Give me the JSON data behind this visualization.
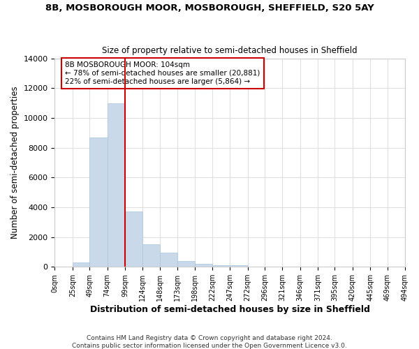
{
  "title": "8B, MOSBOROUGH MOOR, MOSBOROUGH, SHEFFIELD, S20 5AY",
  "subtitle": "Size of property relative to semi-detached houses in Sheffield",
  "xlabel": "Distribution of semi-detached houses by size in Sheffield",
  "ylabel": "Number of semi-detached properties",
  "bin_edges": [
    0,
    25,
    49,
    74,
    99,
    124,
    148,
    173,
    198,
    222,
    247,
    272,
    296,
    321,
    346,
    371,
    395,
    420,
    445,
    469,
    494
  ],
  "bar_heights": [
    0,
    300,
    8700,
    11000,
    3700,
    1500,
    950,
    400,
    175,
    100,
    100,
    0,
    0,
    0,
    0,
    0,
    0,
    0,
    0,
    0
  ],
  "bar_color": "#c9d9ea",
  "bar_edgecolor": "#a8c4dc",
  "vline_x": 99,
  "vline_color": "#cc0000",
  "annotation_title": "8B MOSBOROUGH MOOR: 104sqm",
  "annotation_line1": "← 78% of semi-detached houses are smaller (20,881)",
  "annotation_line2": "22% of semi-detached houses are larger (5,864) →",
  "annotation_box_color": "#cc0000",
  "ylim": [
    0,
    14000
  ],
  "yticks": [
    0,
    2000,
    4000,
    6000,
    8000,
    10000,
    12000,
    14000
  ],
  "tick_labels": [
    "0sqm",
    "25sqm",
    "49sqm",
    "74sqm",
    "99sqm",
    "124sqm",
    "148sqm",
    "173sqm",
    "198sqm",
    "222sqm",
    "247sqm",
    "272sqm",
    "296sqm",
    "321sqm",
    "346sqm",
    "371sqm",
    "395sqm",
    "420sqm",
    "445sqm",
    "469sqm",
    "494sqm"
  ],
  "footer": "Contains HM Land Registry data © Crown copyright and database right 2024.\nContains public sector information licensed under the Open Government Licence v3.0.",
  "bg_color": "#ffffff",
  "plot_bg_color": "#ffffff",
  "grid_color": "#e0e0e0"
}
